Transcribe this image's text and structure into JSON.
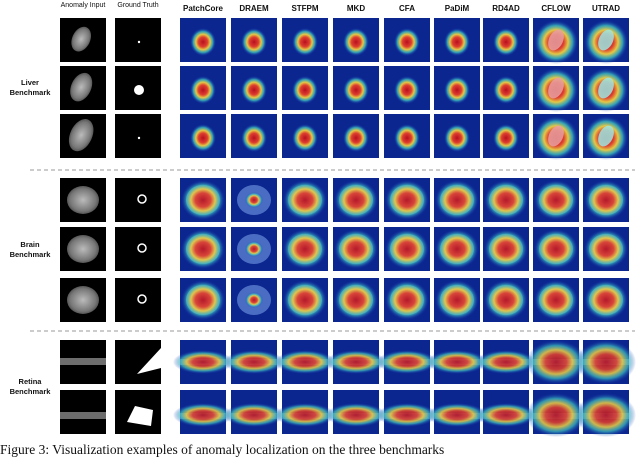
{
  "columns": [
    "Anomaly Input",
    "Ground Truth",
    "PatchCore",
    "DRAEM",
    "STFPM",
    "MKD",
    "CFA",
    "PaDiM",
    "RD4AD",
    "CFLOW",
    "UTRAD"
  ],
  "benchmarks": [
    "Liver Benchmark",
    "Brain Benchmark",
    "Retina Benchmark"
  ],
  "caption": "Figure 3: Visualization examples of anomaly localization on the three benchmarks"
}
